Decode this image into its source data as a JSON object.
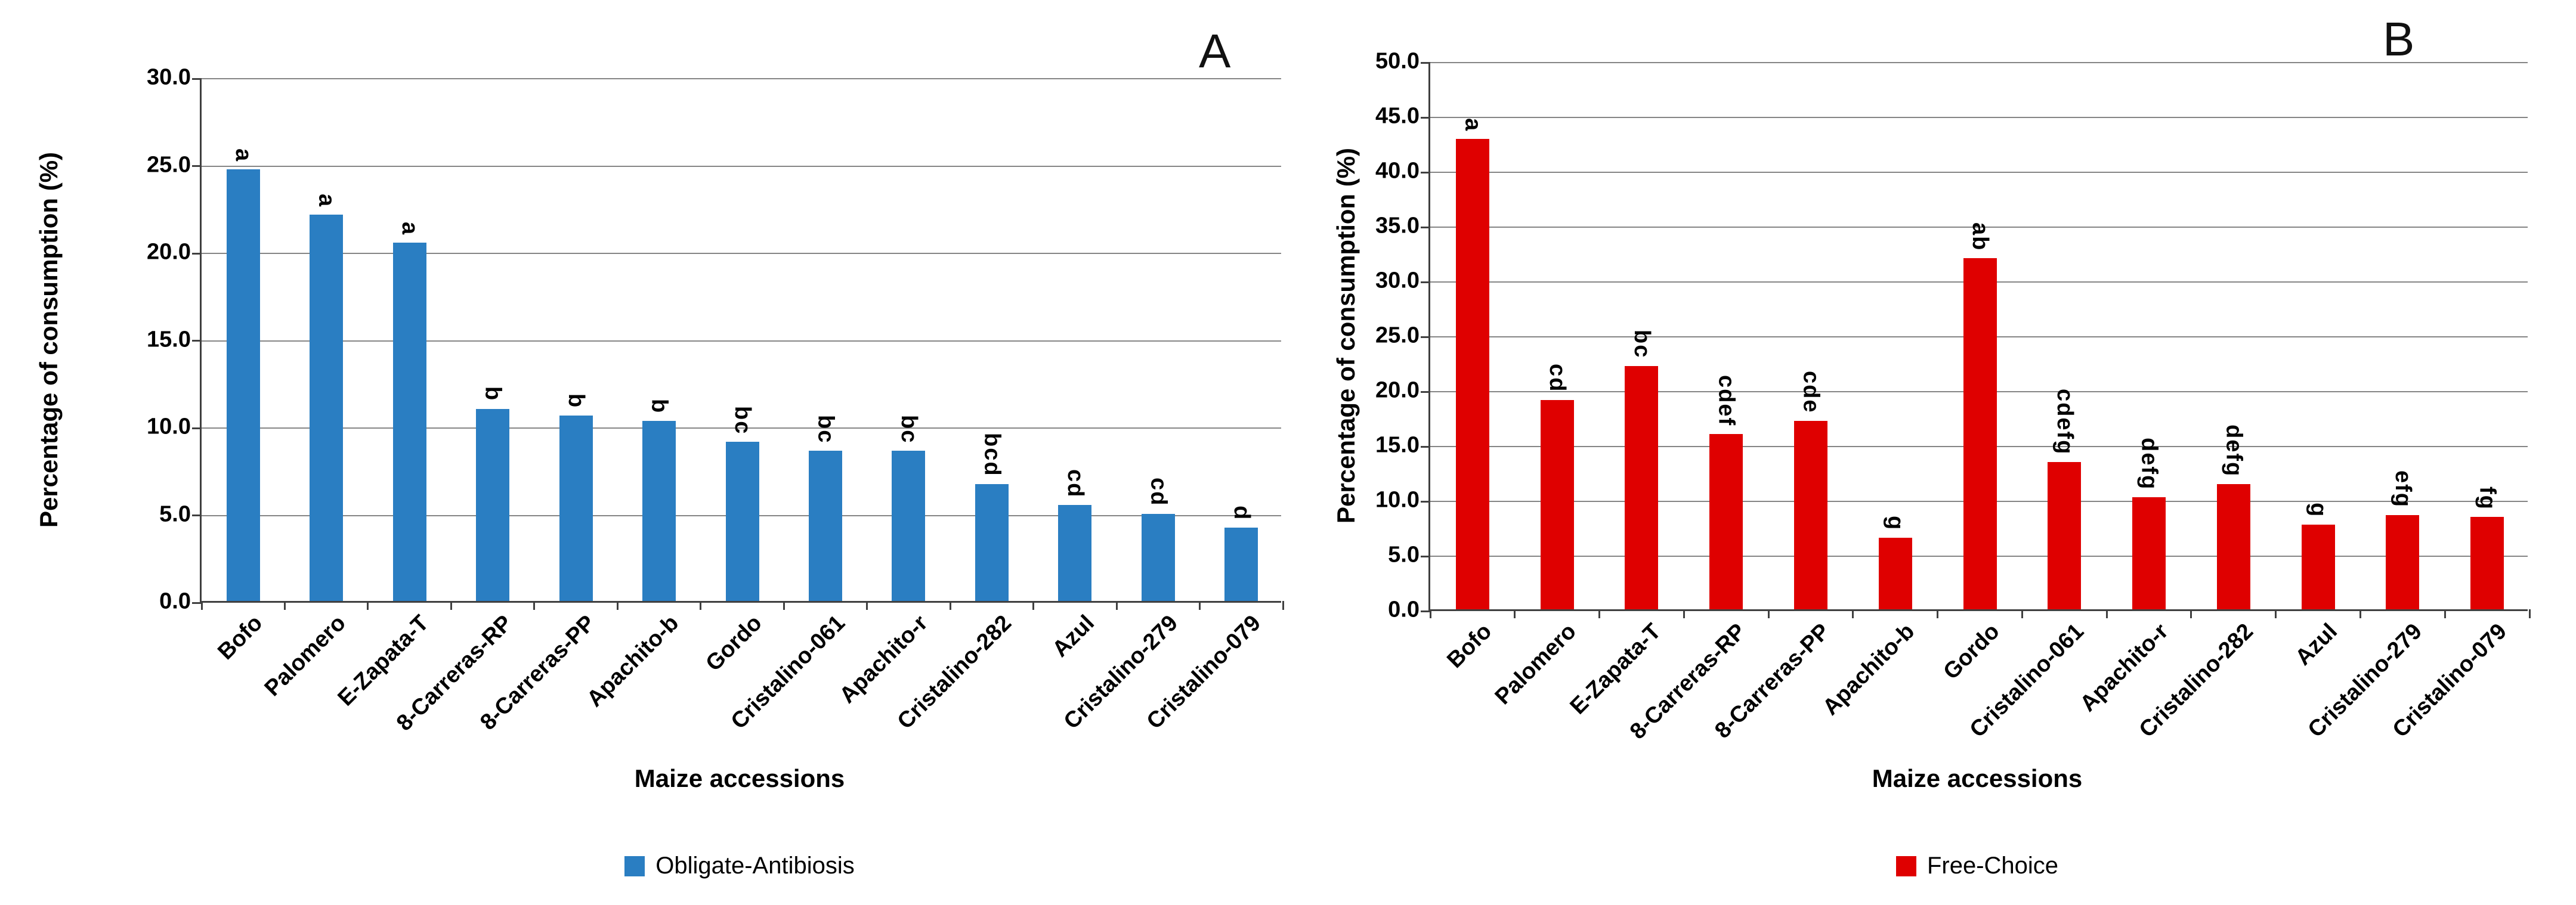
{
  "chart_data": [
    {
      "type": "bar",
      "panel_label": "A",
      "legend_label": "Obligate-Antibiosis",
      "legend_position": "bottom",
      "bar_color": "#2A7EC2",
      "title": "",
      "xlabel": "Maize accessions",
      "ylabel": "Percentage of consumption (%)",
      "ylim": [
        0,
        30
      ],
      "ytick_labels": [
        "0.0",
        "5.0",
        "10.0",
        "15.0",
        "20.0",
        "25.0",
        "30.0"
      ],
      "grid": true,
      "categories": [
        "Bofo",
        "Palomero",
        "E-Zapata-T",
        "8-Carreras-RP",
        "8-Carreras-PP",
        "Apachito-b",
        "Gordo",
        "Cristalino-061",
        "Apachito-r",
        "Cristalino-282",
        "Azul",
        "Cristalino-279",
        "Cristalino-079"
      ],
      "values": [
        24.7,
        22.1,
        20.5,
        11.0,
        10.6,
        10.3,
        9.1,
        8.6,
        8.6,
        6.7,
        5.5,
        5.0,
        4.2
      ],
      "significance_letters": [
        "a",
        "a",
        "a",
        "b",
        "b",
        "b",
        "bc",
        "bc",
        "bc",
        "bcd",
        "cd",
        "cd",
        "d"
      ]
    },
    {
      "type": "bar",
      "panel_label": "B",
      "legend_label": "Free-Choice",
      "legend_position": "bottom",
      "bar_color": "#DF0000",
      "title": "",
      "xlabel": "Maize accessions",
      "ylabel": "Percentage of consumption (%)",
      "ylim": [
        0,
        50
      ],
      "ytick_labels": [
        "0.0",
        "5.0",
        "10.0",
        "15.0",
        "20.0",
        "25.0",
        "30.0",
        "35.0",
        "40.0",
        "45.0",
        "50.0"
      ],
      "grid": true,
      "categories": [
        "Bofo",
        "Palomero",
        "E-Zapata-T",
        "8-Carreras-RP",
        "8-Carreras-PP",
        "Apachito-b",
        "Gordo",
        "Cristalino-061",
        "Apachito-r",
        "Cristalino-282",
        "Azul",
        "Cristalino-279",
        "Cristalino-079"
      ],
      "values": [
        42.9,
        19.1,
        22.2,
        16.0,
        17.2,
        6.5,
        32.0,
        13.4,
        10.2,
        11.4,
        7.7,
        8.6,
        8.4
      ],
      "significance_letters": [
        "a",
        "cd",
        "bc",
        "cdef",
        "cde",
        "g",
        "ab",
        "cdefg",
        "defg",
        "defg",
        "g",
        "efg",
        "fg"
      ]
    }
  ]
}
